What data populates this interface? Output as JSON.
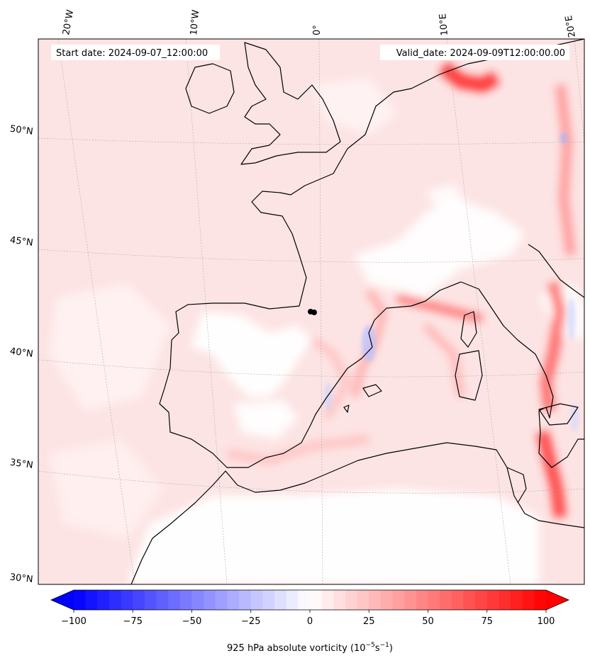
{
  "map": {
    "start_date": "Start date: 2024-09-07_12:00:00",
    "valid_date": "Valid_date: 2024-09-09T12:00:00.00",
    "lon_labels": [
      "20°W",
      "10°W",
      "0°",
      "10°E",
      "20°E"
    ],
    "lat_labels": [
      "50°N",
      "45°N",
      "40°N",
      "35°N",
      "30°N"
    ],
    "land_outline_color": "#000000",
    "gridline_color": "#aaaaaa",
    "marker_color": "#000000"
  },
  "colorbar": {
    "label_main": "925 hPa absolute vorticity (10",
    "label_exp1": "−5",
    "label_mid": "s",
    "label_exp2": "−1",
    "label_end": ")",
    "vmin": -100,
    "vmax": 100,
    "levels": 40,
    "ticks": [
      "−100",
      "−75",
      "−50",
      "−25",
      "0",
      "25",
      "50",
      "75",
      "100"
    ],
    "colormap": "bwr",
    "negative_color": "#0000ff",
    "positive_color": "#ff0000",
    "extend": "both"
  }
}
